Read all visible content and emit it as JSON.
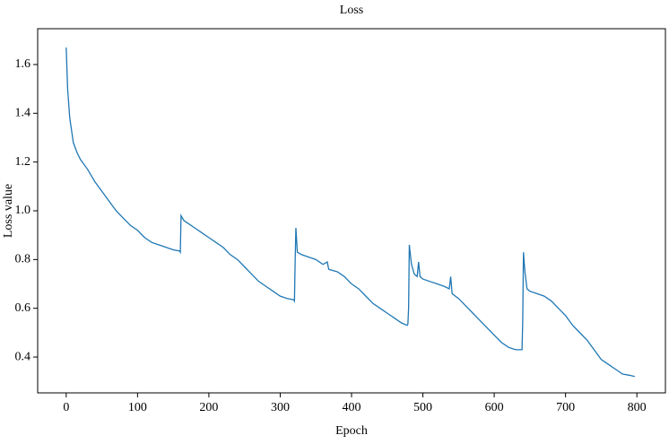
{
  "chart_data": {
    "type": "line",
    "title": "Loss",
    "x_label": "Epoch",
    "y_label": "Loss value",
    "x": [
      0,
      2,
      5,
      10,
      15,
      20,
      30,
      40,
      50,
      60,
      70,
      80,
      90,
      100,
      110,
      120,
      130,
      140,
      150,
      159,
      160,
      161,
      165,
      170,
      180,
      190,
      200,
      210,
      220,
      230,
      240,
      250,
      260,
      270,
      280,
      290,
      300,
      310,
      319,
      320,
      321,
      322,
      324,
      330,
      340,
      350,
      360,
      366,
      368,
      380,
      390,
      400,
      410,
      420,
      430,
      440,
      450,
      460,
      470,
      478,
      479,
      480,
      481,
      484,
      488,
      492,
      494,
      496,
      500,
      510,
      520,
      530,
      537,
      539,
      541,
      550,
      560,
      570,
      580,
      590,
      600,
      610,
      620,
      630,
      639,
      640,
      641,
      643,
      646,
      650,
      660,
      670,
      680,
      690,
      700,
      710,
      720,
      730,
      740,
      750,
      760,
      770,
      780,
      790,
      797
    ],
    "series": [
      {
        "name": "Loss",
        "color": "#1f77b4",
        "values": [
          1.67,
          1.5,
          1.38,
          1.28,
          1.24,
          1.21,
          1.17,
          1.12,
          1.08,
          1.04,
          1.0,
          0.97,
          0.94,
          0.92,
          0.89,
          0.87,
          0.86,
          0.85,
          0.84,
          0.835,
          0.83,
          0.98,
          0.96,
          0.95,
          0.93,
          0.91,
          0.89,
          0.87,
          0.85,
          0.82,
          0.8,
          0.77,
          0.74,
          0.71,
          0.69,
          0.67,
          0.65,
          0.64,
          0.635,
          0.63,
          0.8,
          0.93,
          0.83,
          0.82,
          0.81,
          0.8,
          0.78,
          0.79,
          0.76,
          0.75,
          0.73,
          0.7,
          0.68,
          0.65,
          0.62,
          0.6,
          0.58,
          0.56,
          0.54,
          0.53,
          0.535,
          0.6,
          0.86,
          0.78,
          0.74,
          0.73,
          0.79,
          0.73,
          0.72,
          0.71,
          0.7,
          0.69,
          0.68,
          0.73,
          0.66,
          0.64,
          0.61,
          0.58,
          0.55,
          0.52,
          0.49,
          0.46,
          0.44,
          0.43,
          0.43,
          0.55,
          0.83,
          0.75,
          0.68,
          0.67,
          0.66,
          0.65,
          0.63,
          0.6,
          0.57,
          0.53,
          0.5,
          0.47,
          0.43,
          0.39,
          0.37,
          0.35,
          0.33,
          0.325,
          0.32
        ]
      }
    ],
    "xlim": [
      -40,
      840
    ],
    "ylim": [
      0.253,
      1.747
    ],
    "xticks": [
      0,
      100,
      200,
      300,
      400,
      500,
      600,
      700,
      800
    ],
    "yticks": [
      0.4,
      0.6,
      0.8,
      {
        "value": 1.0,
        "label": "1.0"
      },
      1.2,
      1.4,
      1.6
    ],
    "grid": false
  }
}
